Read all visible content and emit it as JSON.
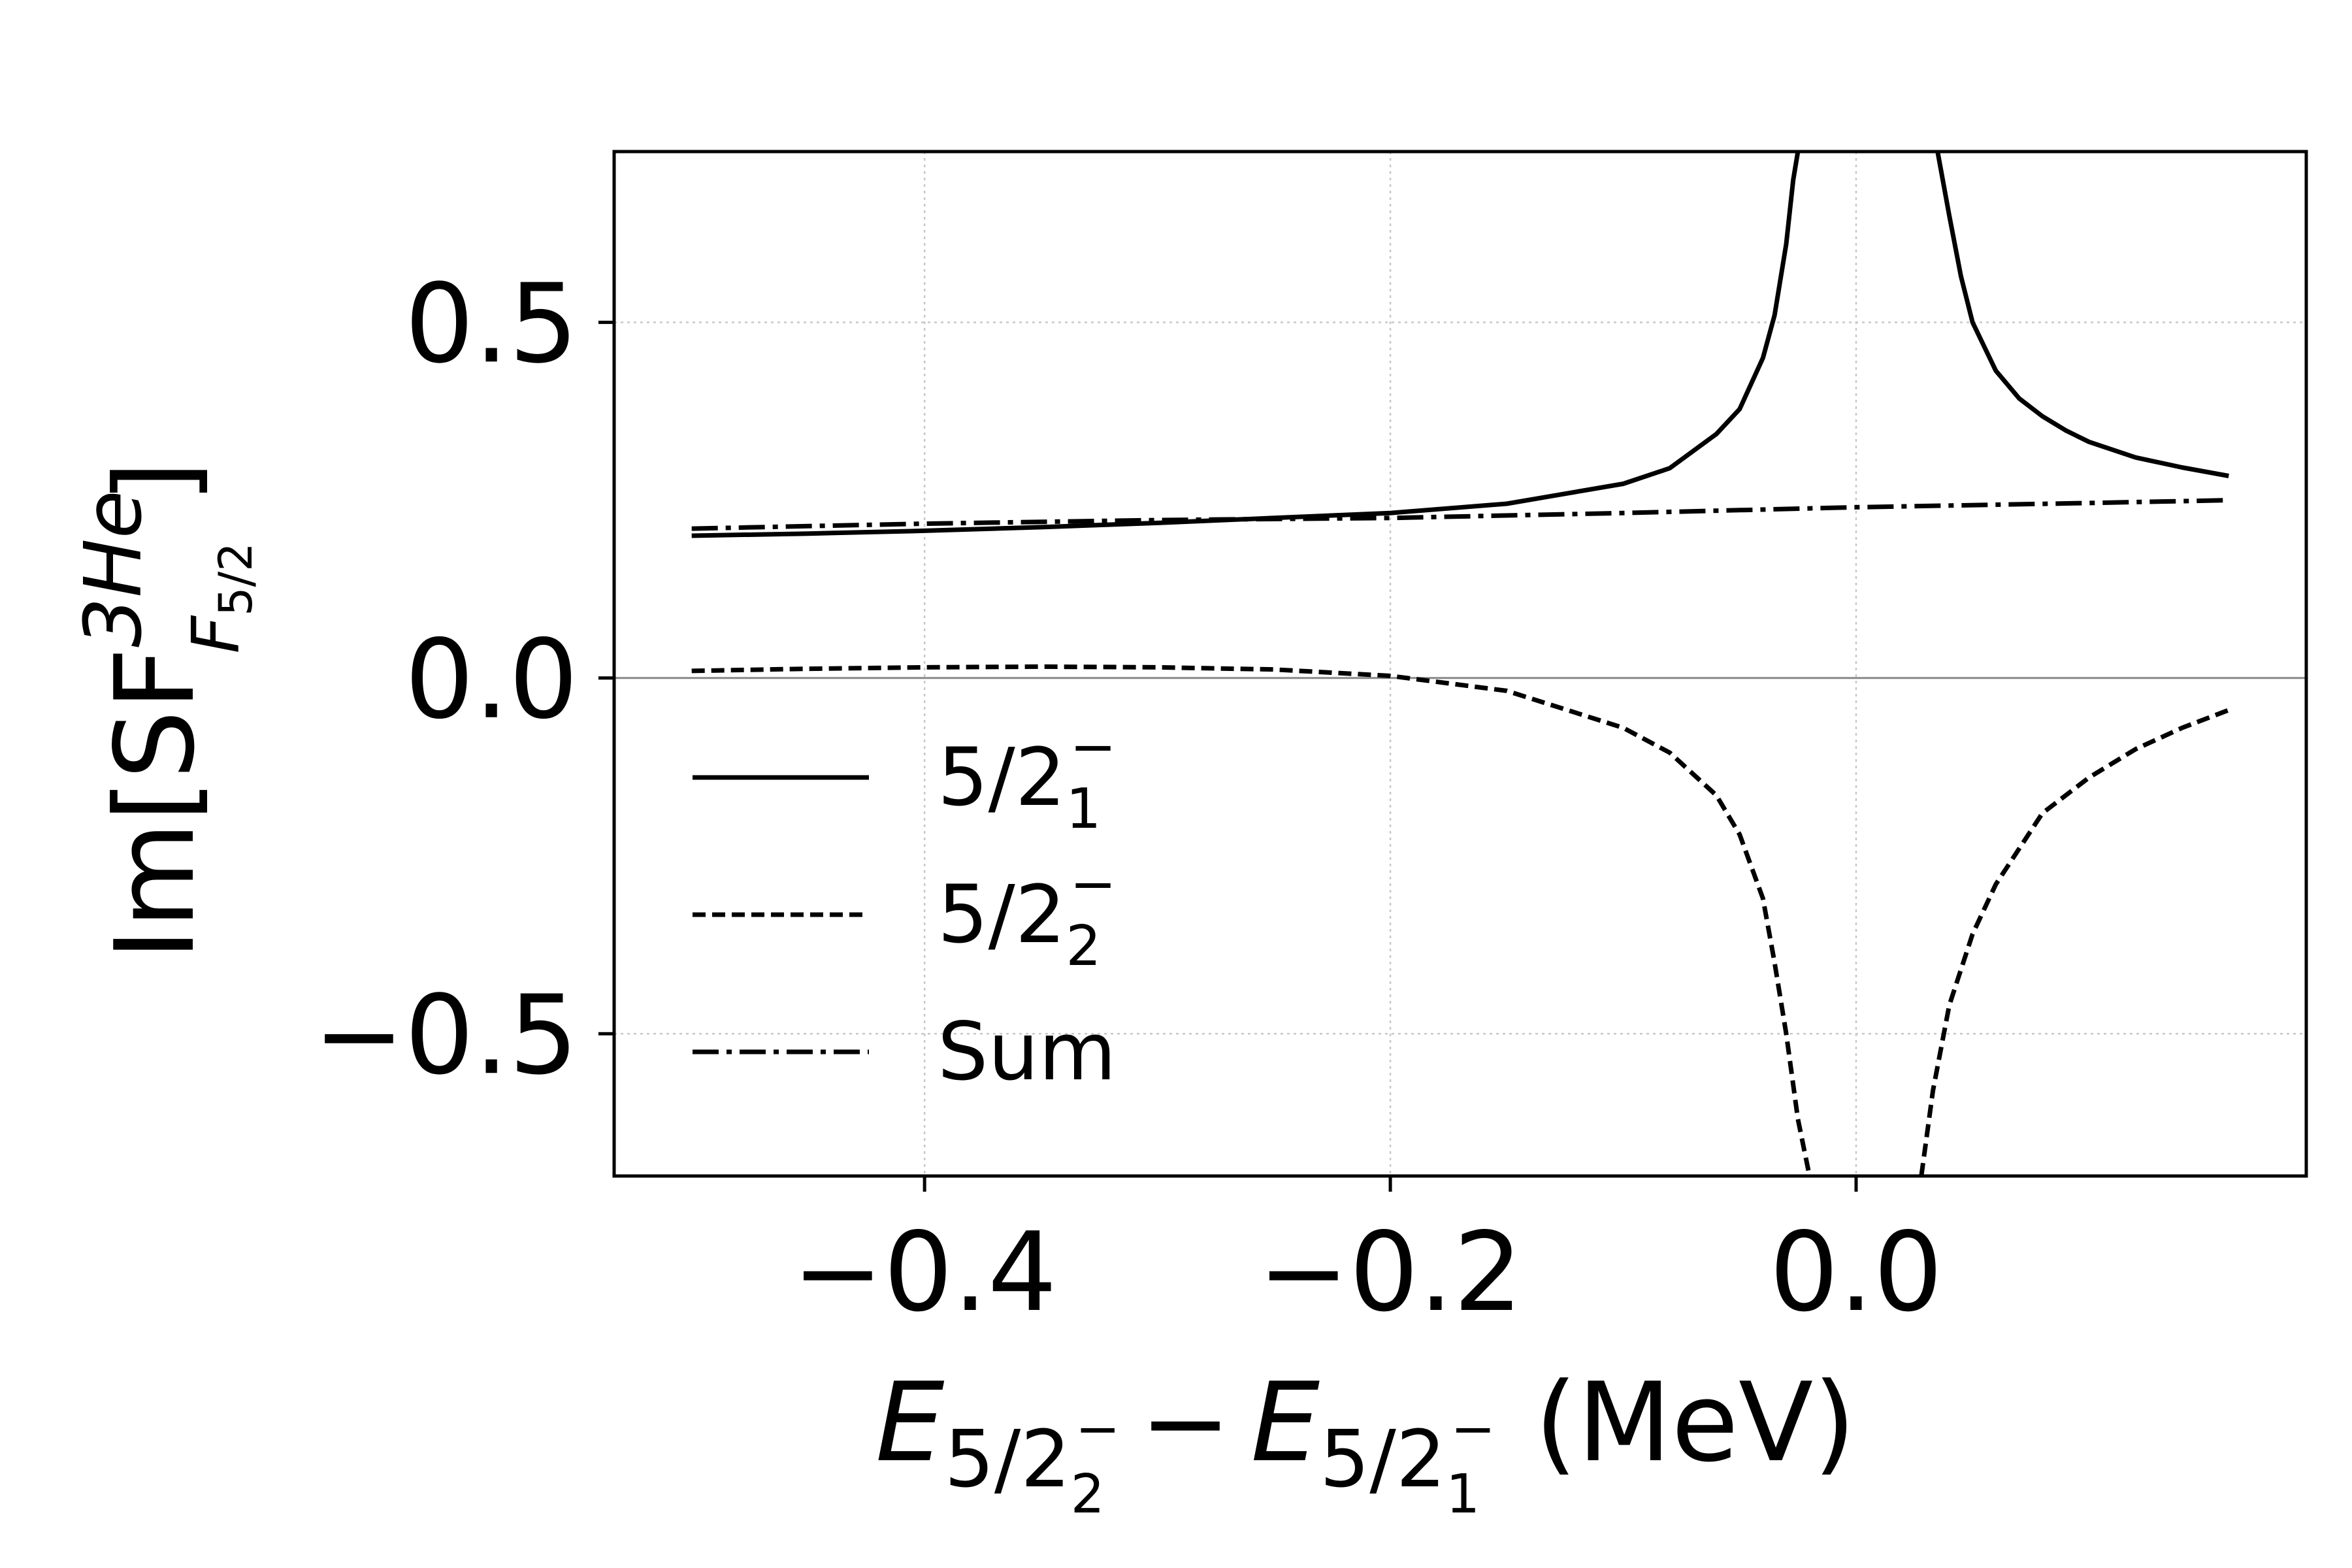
{
  "chart_data": {
    "type": "line",
    "xlabel": {
      "var1": "E",
      "var1_sub": "5/2",
      "var1_subsub": "2",
      "var1_supsup": "−",
      "minus": "−",
      "var2": "E",
      "var2_sub": "5/2",
      "var2_subsub": "1",
      "var2_supsup": "−",
      "unit": "(MeV)"
    },
    "ylabel": {
      "main": "Im[SF",
      "sup": "3He",
      "sub": "F",
      "subsub": "5/2",
      "close": "]"
    },
    "xlim": [
      -0.5333,
      0.1933
    ],
    "ylim": [
      -0.7,
      0.74
    ],
    "xticks": [
      -0.4,
      -0.2,
      0.0
    ],
    "xtick_labels": [
      "−0.4",
      "−0.2",
      "0.0"
    ],
    "yticks": [
      -0.5,
      0.0,
      0.5
    ],
    "ytick_labels": [
      "−0.5",
      "0.0",
      "0.5"
    ],
    "grid": true,
    "zero_line": true,
    "legend_position": "lower-left",
    "series": [
      {
        "name": "5/2",
        "name_sub": "1",
        "name_sup": "−",
        "style": "solid",
        "color": "#000000",
        "segments": [
          [
            [
              -0.5,
              0.2
            ],
            [
              -0.45,
              0.203
            ],
            [
              -0.4,
              0.207
            ],
            [
              -0.35,
              0.212
            ],
            [
              -0.3,
              0.218
            ],
            [
              -0.25,
              0.225
            ],
            [
              -0.2,
              0.232
            ],
            [
              -0.15,
              0.245
            ],
            [
              -0.1,
              0.273
            ],
            [
              -0.08,
              0.295
            ],
            [
              -0.06,
              0.343
            ],
            [
              -0.05,
              0.378
            ],
            [
              -0.04,
              0.45
            ],
            [
              -0.035,
              0.51
            ],
            [
              -0.03,
              0.61
            ],
            [
              -0.027,
              0.7
            ],
            [
              -0.025,
              0.74
            ]
          ],
          [
            [
              0.035,
              0.74
            ],
            [
              0.04,
              0.65
            ],
            [
              0.045,
              0.565
            ],
            [
              0.05,
              0.5
            ],
            [
              0.06,
              0.432
            ],
            [
              0.07,
              0.393
            ],
            [
              0.08,
              0.368
            ],
            [
              0.09,
              0.348
            ],
            [
              0.1,
              0.332
            ],
            [
              0.12,
              0.31
            ],
            [
              0.14,
              0.296
            ],
            [
              0.16,
              0.284
            ]
          ]
        ]
      },
      {
        "name": "5/2",
        "name_sub": "2",
        "name_sup": "−",
        "style": "dashed",
        "color": "#000000",
        "segments": [
          [
            [
              -0.5,
              0.01
            ],
            [
              -0.45,
              0.013
            ],
            [
              -0.4,
              0.015
            ],
            [
              -0.35,
              0.016
            ],
            [
              -0.3,
              0.015
            ],
            [
              -0.25,
              0.012
            ],
            [
              -0.2,
              0.003
            ],
            [
              -0.15,
              -0.018
            ],
            [
              -0.1,
              -0.07
            ],
            [
              -0.08,
              -0.105
            ],
            [
              -0.06,
              -0.165
            ],
            [
              -0.05,
              -0.22
            ],
            [
              -0.04,
              -0.31
            ],
            [
              -0.035,
              -0.4
            ],
            [
              -0.03,
              -0.5
            ],
            [
              -0.025,
              -0.62
            ],
            [
              -0.02,
              -0.7
            ]
          ],
          [
            [
              0.028,
              -0.7
            ],
            [
              0.033,
              -0.58
            ],
            [
              0.04,
              -0.46
            ],
            [
              0.05,
              -0.36
            ],
            [
              0.06,
              -0.29
            ],
            [
              0.07,
              -0.24
            ],
            [
              0.08,
              -0.19
            ],
            [
              0.1,
              -0.14
            ],
            [
              0.12,
              -0.1
            ],
            [
              0.14,
              -0.07
            ],
            [
              0.16,
              -0.045
            ]
          ]
        ]
      },
      {
        "name": "Sum",
        "style": "dashdot",
        "color": "#000000",
        "segments": [
          [
            [
              -0.5,
              0.21
            ],
            [
              -0.4,
              0.217
            ],
            [
              -0.3,
              0.222
            ],
            [
              -0.2,
              0.225
            ],
            [
              -0.1,
              0.232
            ],
            [
              0.0,
              0.24
            ],
            [
              0.1,
              0.246
            ],
            [
              0.16,
              0.25
            ]
          ]
        ]
      }
    ]
  }
}
